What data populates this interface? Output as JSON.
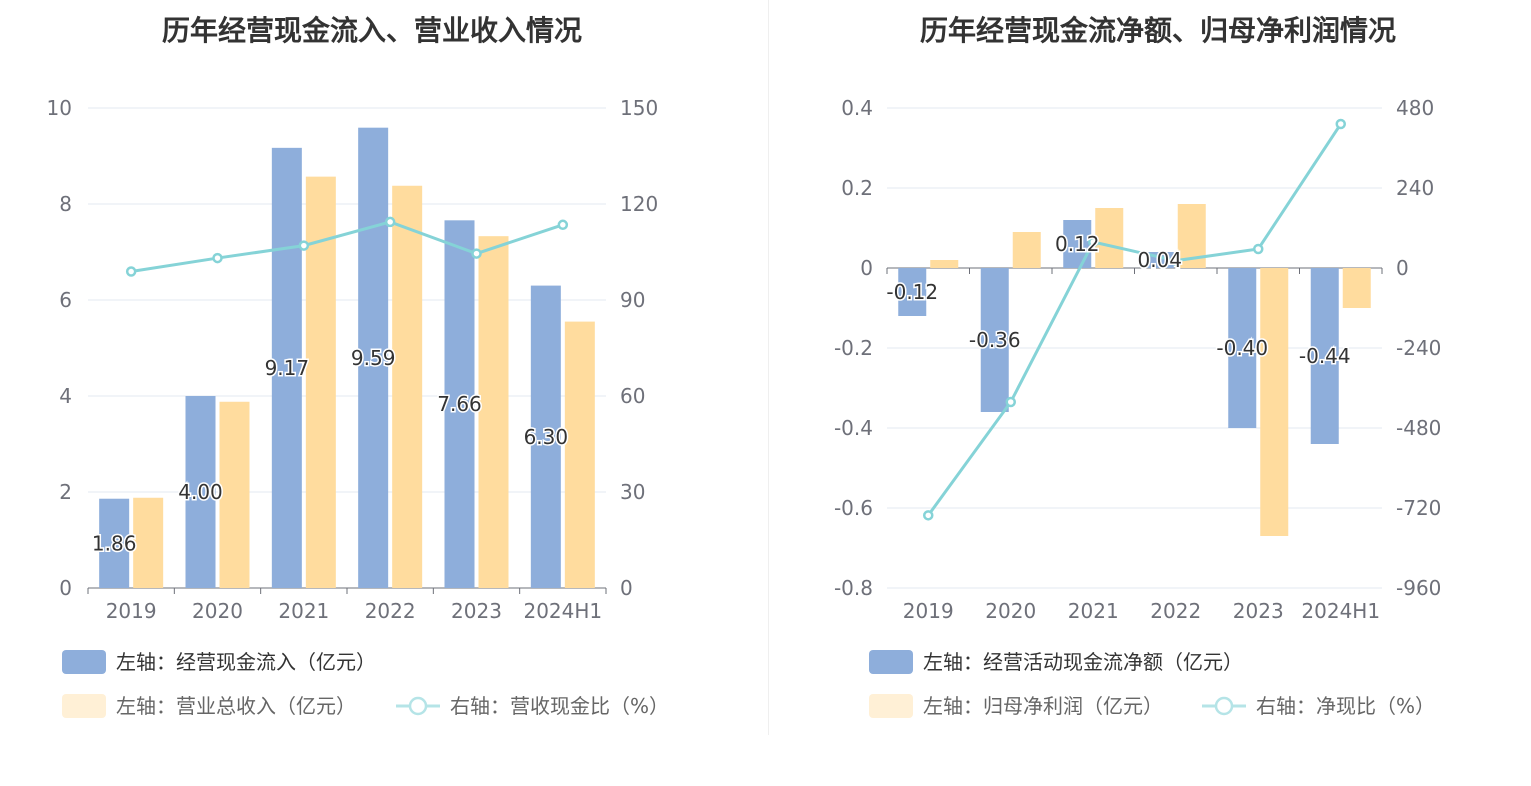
{
  "colors": {
    "bar_blue": "#8eaedb",
    "bar_yellow": "#ffdc9e",
    "line": "#85d3d7",
    "legend_dim_blue": "#e4ecf7",
    "legend_dim_yellow": "#fff0d6",
    "legend_dim_line": "#b5e4e7"
  },
  "chart_data": [
    {
      "type": "bar",
      "title": "历年经营现金流入、营业收入情况",
      "categories": [
        "2019",
        "2020",
        "2021",
        "2022",
        "2023",
        "2024H1"
      ],
      "y_left": {
        "min": 0,
        "max": 10,
        "ticks": [
          "0",
          "2",
          "4",
          "6",
          "8",
          "10"
        ]
      },
      "y_right": {
        "min": 0,
        "max": 150,
        "ticks": [
          "0",
          "30",
          "60",
          "90",
          "120",
          "150"
        ]
      },
      "grid": true,
      "legend_position": "bottom-left",
      "series": [
        {
          "name": "左轴：经营现金流入（亿元）",
          "type": "bar",
          "axis": "left",
          "values": [
            1.86,
            4.0,
            9.17,
            9.59,
            7.66,
            6.3
          ],
          "labels": [
            "1.86",
            "4.00",
            "9.17",
            "9.59",
            "7.66",
            "6.30"
          ]
        },
        {
          "name": "左轴：营业总收入（亿元）",
          "type": "bar",
          "axis": "left",
          "values": [
            1.88,
            3.88,
            8.57,
            8.38,
            7.33,
            5.55
          ]
        },
        {
          "name": "右轴：营收现金比（%）",
          "type": "line",
          "axis": "right",
          "values": [
            98.9,
            103.1,
            107.0,
            114.4,
            104.5,
            113.5
          ]
        }
      ]
    },
    {
      "type": "bar",
      "title": "历年经营现金流净额、归母净利润情况",
      "categories": [
        "2019",
        "2020",
        "2021",
        "2022",
        "2023",
        "2024H1"
      ],
      "y_left": {
        "min": -0.8,
        "max": 0.4,
        "ticks": [
          "-0.8",
          "-0.6",
          "-0.4",
          "-0.2",
          "0",
          "0.2",
          "0.4"
        ]
      },
      "y_right": {
        "min": -960,
        "max": 480,
        "ticks": [
          "-960",
          "-720",
          "-480",
          "-240",
          "0",
          "240",
          "480"
        ]
      },
      "grid": true,
      "legend_position": "bottom-left",
      "series": [
        {
          "name": "左轴：经营活动现金流净额（亿元）",
          "type": "bar",
          "axis": "left",
          "values": [
            -0.12,
            -0.36,
            0.12,
            0.04,
            -0.4,
            -0.44
          ],
          "labels": [
            "-0.12",
            "-0.36",
            "0.12",
            "0.04",
            "-0.40",
            "-0.44"
          ]
        },
        {
          "name": "左轴：归母净利润（亿元）",
          "type": "bar",
          "axis": "left",
          "values": [
            0.02,
            0.09,
            0.15,
            0.16,
            -0.67,
            -0.1
          ]
        },
        {
          "name": "右轴：净现比（%）",
          "type": "line",
          "axis": "right",
          "values": [
            -742,
            -402,
            78,
            22,
            57,
            432
          ]
        }
      ]
    }
  ]
}
